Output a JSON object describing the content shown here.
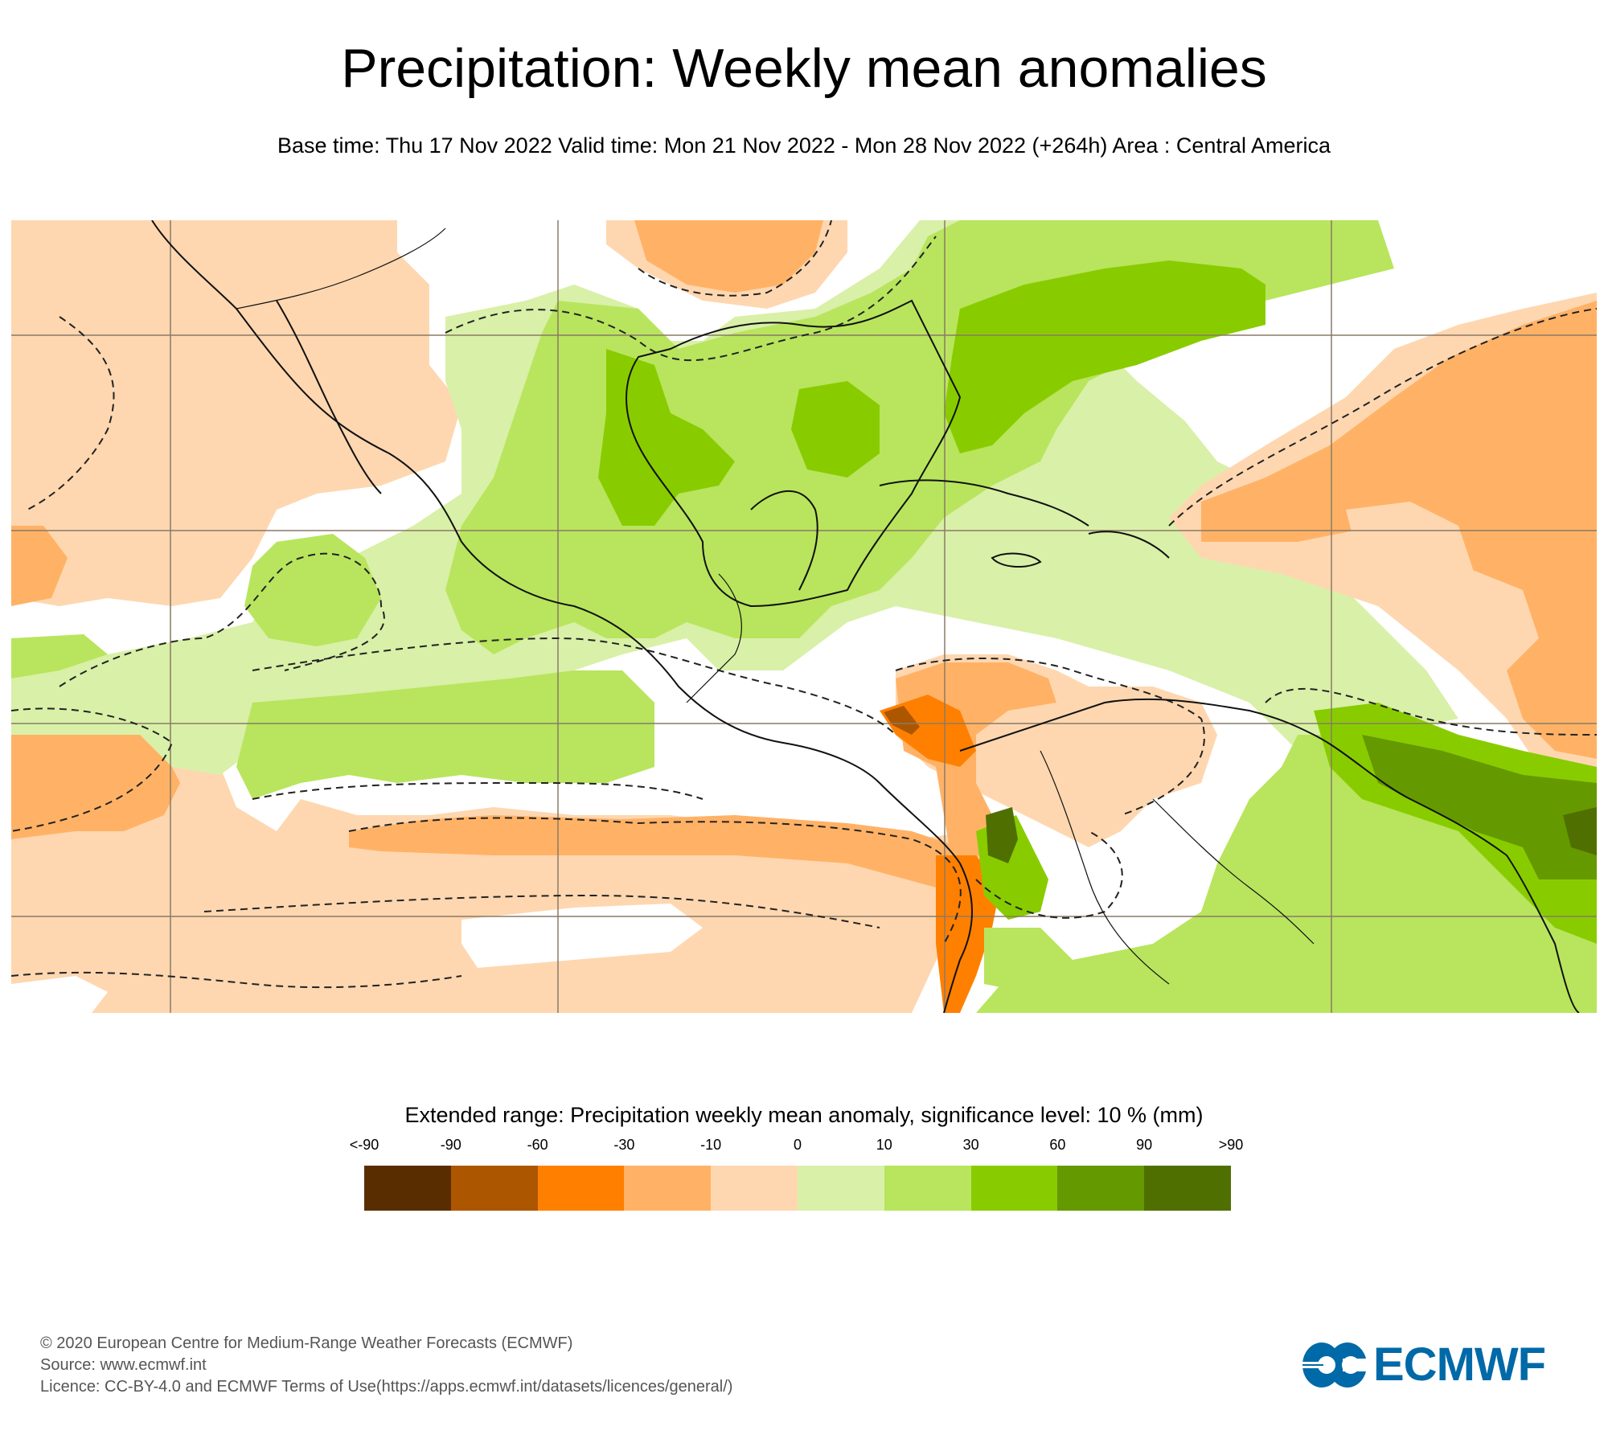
{
  "header": {
    "title": "Precipitation: Weekly mean anomalies",
    "subtitle": "Base time: Thu 17 Nov 2022 Valid time: Mon 21 Nov 2022 - Mon 28 Nov 2022 (+264h) Area : Central America"
  },
  "map": {
    "area": "Central America",
    "layers": [
      "precipitation-anomaly-fill",
      "significance-contour-dashed",
      "coastlines",
      "borders",
      "graticule"
    ]
  },
  "legend": {
    "title": "Extended range: Precipitation weekly mean anomaly, significance level: 10 % (mm)",
    "ticks": [
      "<-90",
      "-90",
      "-60",
      "-30",
      "-10",
      "0",
      "10",
      "30",
      "60",
      "90",
      ">90"
    ],
    "colors": [
      "#5a2d00",
      "#ad5600",
      "#ff8000",
      "#ffb266",
      "#fed7b0",
      "#d9f0a8",
      "#b8e55d",
      "#88cc00",
      "#659900",
      "#4f7000"
    ]
  },
  "footer": {
    "line1": "© 2020 European Centre for Medium-Range Weather Forecasts (ECMWF)",
    "line2": "Source: www.ecmwf.int",
    "line3": "Licence: CC-BY-4.0 and ECMWF Terms of Use(https://apps.ecmwf.int/datasets/licences/general/)"
  },
  "logo": {
    "text": "ECMWF",
    "color": "#0069a8"
  }
}
